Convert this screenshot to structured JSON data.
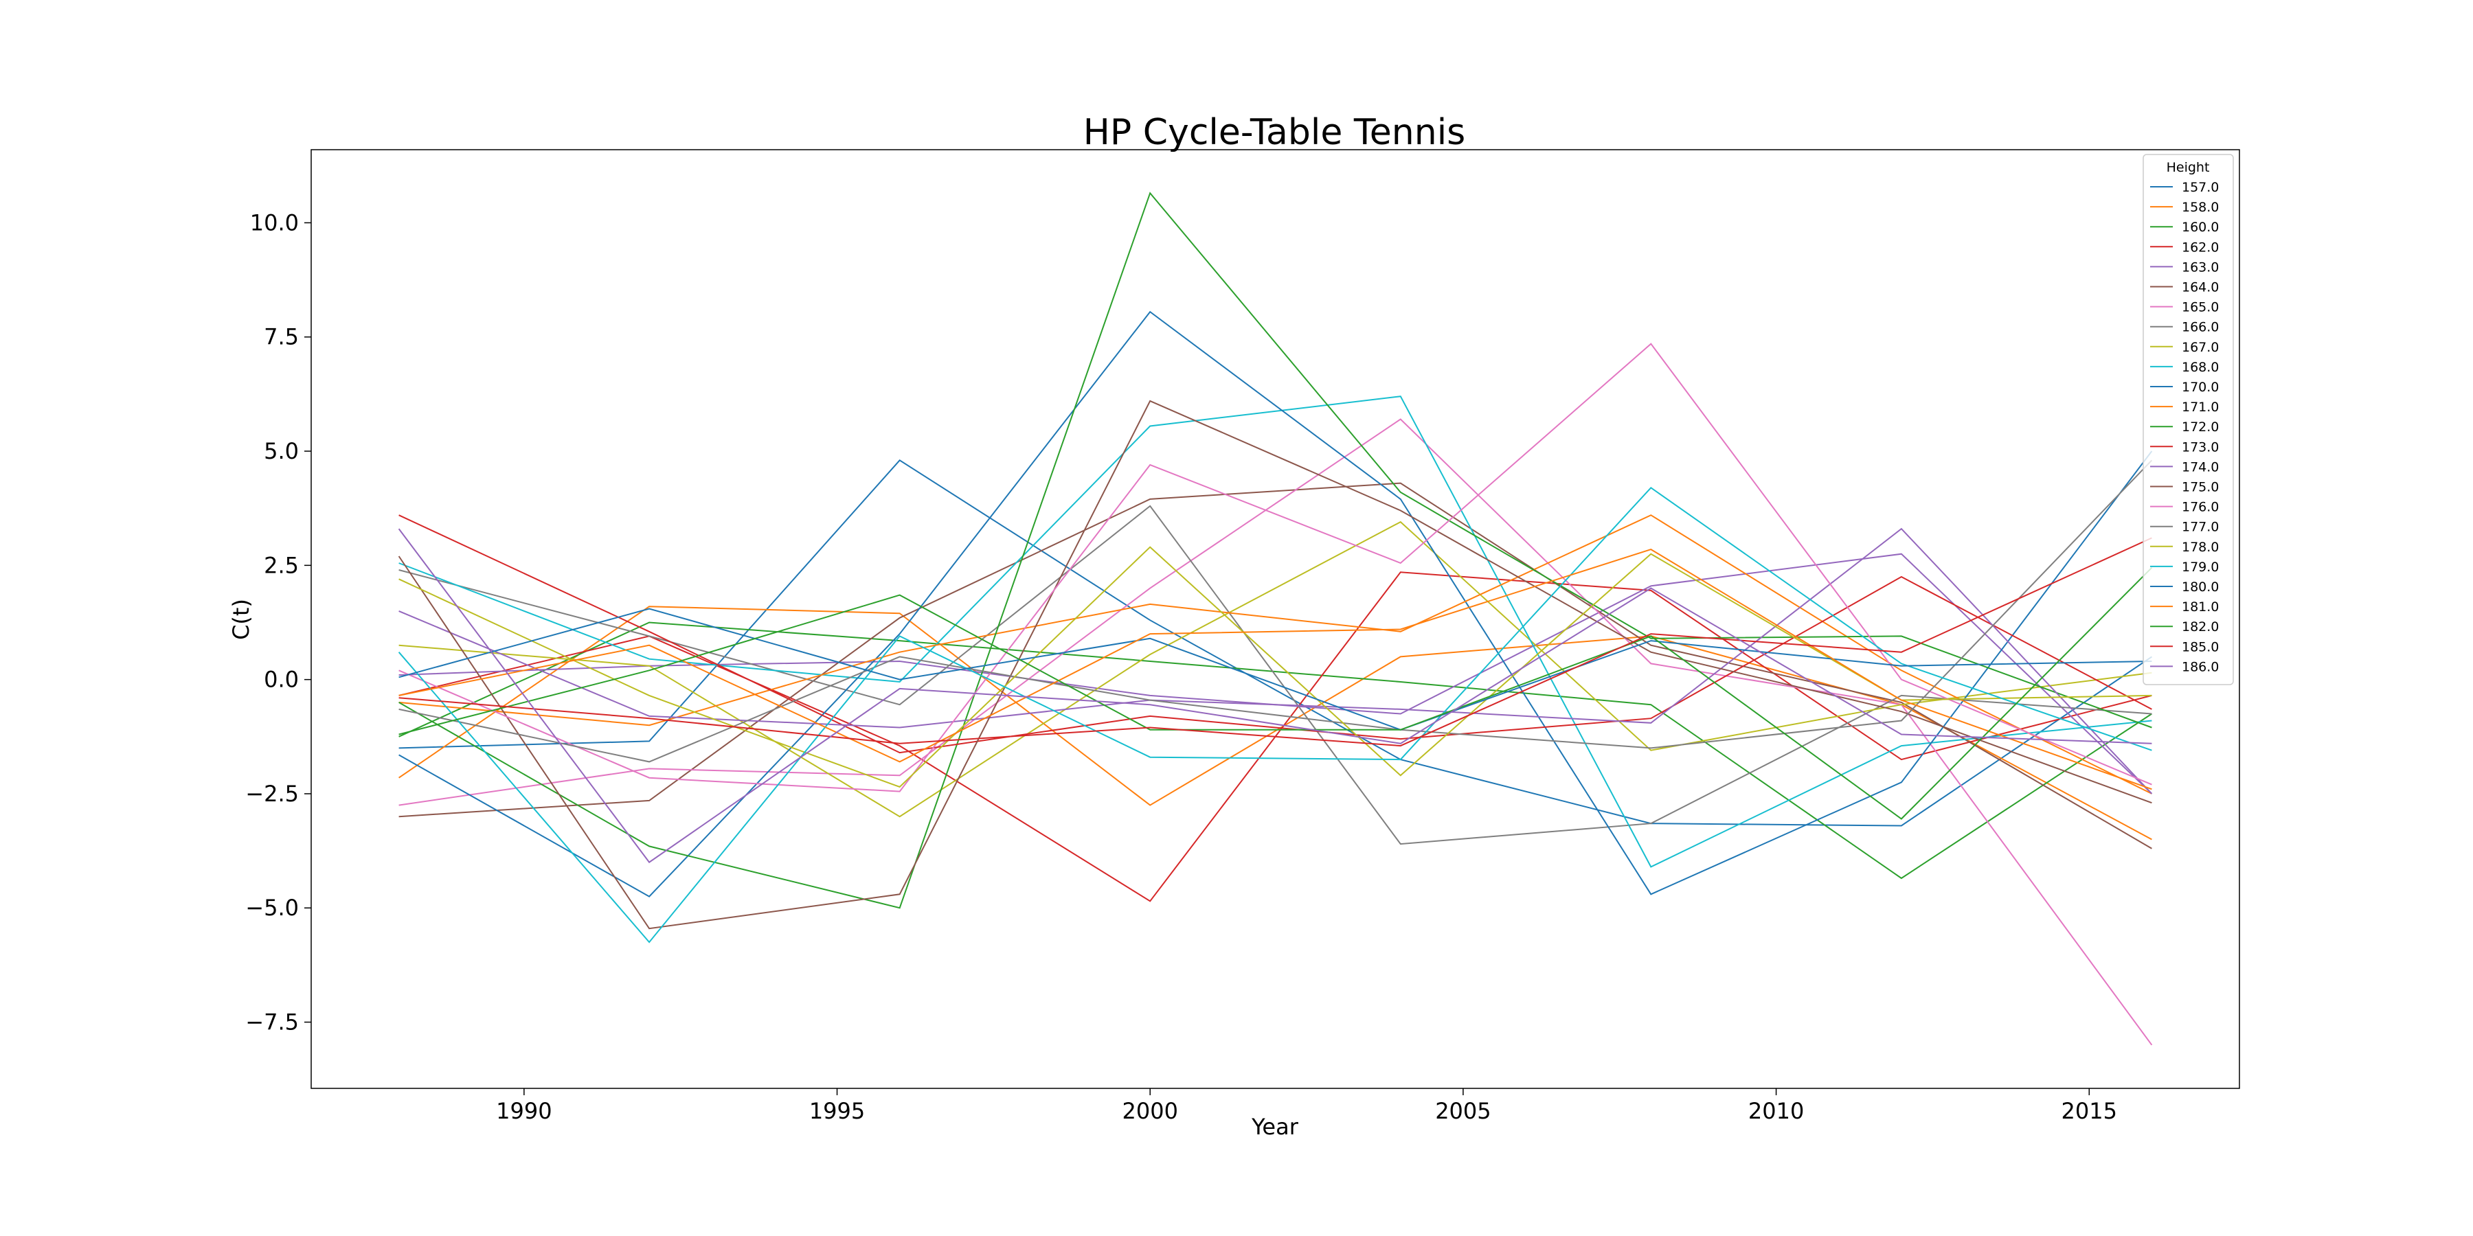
{
  "chart_data": {
    "type": "line",
    "title": "HP Cycle-Table Tennis",
    "xlabel": "Year",
    "ylabel": "C(t)",
    "xlim": [
      1986.6,
      2017.4
    ],
    "ylim": [
      -8.95,
      11.6
    ],
    "xticks": [
      1990,
      1995,
      2000,
      2005,
      2010,
      2015
    ],
    "yticks": [
      -7.5,
      -5.0,
      -2.5,
      0.0,
      2.5,
      5.0,
      7.5,
      10.0
    ],
    "ytick_labels": [
      "−7.5",
      "−5.0",
      "−2.5",
      "0.0",
      "2.5",
      "5.0",
      "7.5",
      "10.0"
    ],
    "grid": false,
    "legend_title": "Height",
    "legend_position": "top-right",
    "x": [
      1988,
      1992,
      1996,
      2000,
      2004,
      2008,
      2012,
      2016
    ],
    "series": [
      {
        "name": "157.0",
        "color": "#1f77b4",
        "values": [
          -1.5,
          -1.35,
          4.8,
          1.3,
          -1.75,
          -3.15,
          -3.2,
          0.5
        ]
      },
      {
        "name": "158.0",
        "color": "#ff7f0e",
        "values": [
          -2.15,
          1.6,
          1.45,
          -2.75,
          0.5,
          0.95,
          -0.55,
          -3.5
        ]
      },
      {
        "name": "160.0",
        "color": "#2ca02c",
        "values": [
          -1.25,
          1.25,
          0.85,
          0.4,
          -0.05,
          -0.55,
          -4.35,
          -0.75
        ]
      },
      {
        "name": "162.0",
        "color": "#d62728",
        "values": [
          -0.35,
          0.95,
          -1.45,
          -4.85,
          2.35,
          1.95,
          -1.75,
          -0.35
        ]
      },
      {
        "name": "163.0",
        "color": "#9467bd",
        "values": [
          0.1,
          0.3,
          0.4,
          -0.35,
          -0.75,
          2.05,
          2.75,
          -2.5
        ]
      },
      {
        "name": "164.0",
        "color": "#8c564b",
        "values": [
          -3.0,
          -2.65,
          1.35,
          3.95,
          4.3,
          0.75,
          -0.5,
          -3.7
        ]
      },
      {
        "name": "165.0",
        "color": "#e377c2",
        "values": [
          -2.75,
          -1.95,
          -2.1,
          2.0,
          5.7,
          0.35,
          -0.55,
          -8.0
        ]
      },
      {
        "name": "166.0",
        "color": "#7f7f7f",
        "values": [
          2.4,
          0.95,
          -0.55,
          3.8,
          -3.6,
          -3.15,
          -0.35,
          -0.75
        ]
      },
      {
        "name": "167.0",
        "color": "#bcbd22",
        "values": [
          0.75,
          0.3,
          -3.0,
          0.55,
          3.45,
          -1.55,
          -0.55,
          0.15
        ]
      },
      {
        "name": "168.0",
        "color": "#17becf",
        "values": [
          2.55,
          0.45,
          -0.05,
          5.55,
          6.2,
          -4.1,
          -1.45,
          -0.9
        ]
      },
      {
        "name": "170.0",
        "color": "#1f77b4",
        "values": [
          -1.65,
          -4.75,
          1.0,
          8.05,
          3.95,
          -4.7,
          -2.25,
          5.0
        ]
      },
      {
        "name": "171.0",
        "color": "#ff7f0e",
        "values": [
          -0.5,
          -1.0,
          0.6,
          1.65,
          1.05,
          3.6,
          0.2,
          -2.5
        ]
      },
      {
        "name": "172.0",
        "color": "#2ca02c",
        "values": [
          -0.5,
          -3.65,
          -5.0,
          10.65,
          4.1,
          0.9,
          0.95,
          -1.05
        ]
      },
      {
        "name": "173.0",
        "color": "#d62728",
        "values": [
          3.6,
          1.05,
          -1.6,
          -0.8,
          -1.3,
          -0.85,
          2.25,
          -0.65
        ]
      },
      {
        "name": "174.0",
        "color": "#9467bd",
        "values": [
          1.5,
          -0.8,
          -1.05,
          -0.45,
          -0.65,
          -0.95,
          3.3,
          -2.5
        ]
      },
      {
        "name": "175.0",
        "color": "#8c564b",
        "values": [
          2.7,
          -5.45,
          -4.7,
          6.1,
          3.7,
          0.6,
          -0.7,
          -2.7
        ]
      },
      {
        "name": "176.0",
        "color": "#e377c2",
        "values": [
          0.2,
          -2.15,
          -2.45,
          4.7,
          2.55,
          7.35,
          0.0,
          -2.3
        ]
      },
      {
        "name": "177.0",
        "color": "#7f7f7f",
        "values": [
          -0.65,
          -1.8,
          0.5,
          -0.45,
          -1.1,
          -1.5,
          -0.9,
          4.8
        ]
      },
      {
        "name": "178.0",
        "color": "#bcbd22",
        "values": [
          2.2,
          -0.35,
          -2.35,
          2.9,
          -2.1,
          2.75,
          -0.45,
          -0.35
        ]
      },
      {
        "name": "179.0",
        "color": "#17becf",
        "values": [
          0.6,
          -5.75,
          0.95,
          -1.7,
          -1.75,
          4.2,
          0.35,
          -1.55
        ]
      },
      {
        "name": "180.0",
        "color": "#1f77b4",
        "values": [
          0.05,
          1.55,
          0.0,
          0.9,
          -1.1,
          0.85,
          0.3,
          0.4
        ]
      },
      {
        "name": "181.0",
        "color": "#ff7f0e",
        "values": [
          -0.35,
          0.75,
          -1.8,
          1.0,
          1.1,
          2.85,
          -0.45,
          -2.4
        ]
      },
      {
        "name": "182.0",
        "color": "#2ca02c",
        "values": [
          -1.2,
          0.2,
          1.85,
          -1.1,
          -1.1,
          0.95,
          -3.05,
          2.45
        ]
      },
      {
        "name": "185.0",
        "color": "#d62728",
        "values": [
          -0.4,
          -0.85,
          -1.4,
          -1.05,
          -1.45,
          1.0,
          0.6,
          3.1
        ]
      },
      {
        "name": "186.0",
        "color": "#9467bd",
        "values": [
          3.3,
          -4.0,
          -0.2,
          -0.55,
          -1.4,
          2.0,
          -1.2,
          -1.4
        ]
      }
    ]
  }
}
